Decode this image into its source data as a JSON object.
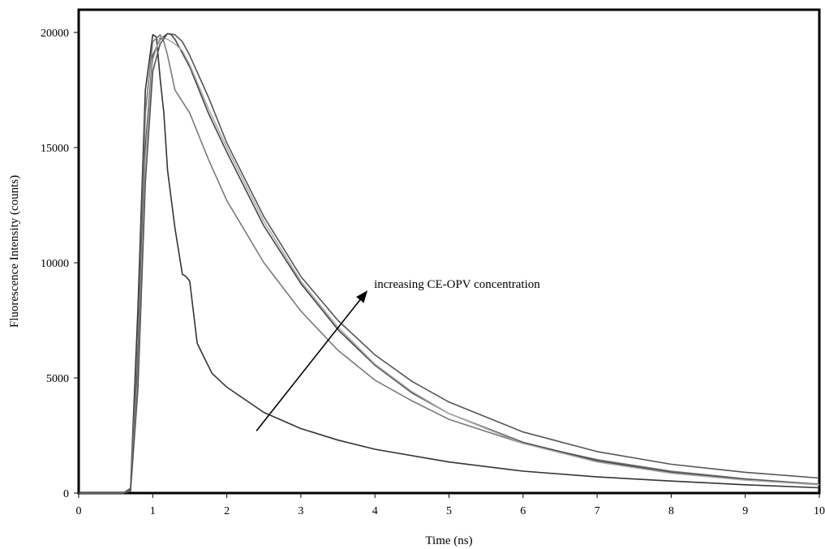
{
  "chart_data": {
    "type": "line",
    "title": "",
    "xlabel": "Time (ns)",
    "ylabel": "Fluorescence Intensity (counts)",
    "xlim": [
      0,
      10
    ],
    "ylim": [
      0,
      21000
    ],
    "x_ticks": [
      "0",
      "1",
      "2",
      "3",
      "4",
      "5",
      "6",
      "7",
      "8",
      "9",
      "10"
    ],
    "y_ticks": [
      "0",
      "5000",
      "10000",
      "15000",
      "20000"
    ],
    "grid": false,
    "legend": "none",
    "annotation": {
      "text": "increasing CE-OPV concentration",
      "arrow_from": [
        2.4,
        2700
      ],
      "arrow_to": [
        3.9,
        8800
      ]
    },
    "series": [
      {
        "color": "#333333",
        "x": [
          0,
          0.6,
          0.7,
          0.8,
          0.9,
          1.0,
          1.05,
          1.1,
          1.15,
          1.2,
          1.3,
          1.4,
          1.45,
          1.5,
          1.6,
          1.8,
          2.0,
          2.5,
          3.0,
          3.5,
          4.0,
          5.0,
          6.0,
          7.0,
          8.0,
          9.0,
          10.0
        ],
        "y": [
          0,
          0,
          200,
          8000,
          17500,
          19900,
          19800,
          18000,
          16500,
          14000,
          11500,
          9500,
          9400,
          9200,
          6500,
          5200,
          4600,
          3500,
          2800,
          2300,
          1900,
          1350,
          950,
          700,
          520,
          360,
          230
        ]
      },
      {
        "color": "#7a7a7a",
        "x": [
          0,
          0.6,
          0.7,
          0.8,
          0.9,
          1.0,
          1.1,
          1.15,
          1.2,
          1.3,
          1.5,
          1.75,
          2.0,
          2.5,
          3.0,
          3.5,
          4.0,
          4.5,
          5.0,
          6.0,
          7.0,
          8.0,
          9.0,
          10.0
        ],
        "y": [
          0,
          0,
          150,
          6500,
          16500,
          19600,
          19900,
          19600,
          19000,
          17500,
          16500,
          14500,
          12700,
          10000,
          7900,
          6200,
          4900,
          4000,
          3200,
          2150,
          1450,
          950,
          620,
          380
        ]
      },
      {
        "color": "#444444",
        "x": [
          0,
          0.6,
          0.7,
          0.8,
          0.9,
          1.0,
          1.1,
          1.2,
          1.25,
          1.3,
          1.5,
          1.75,
          2.0,
          2.5,
          3.0,
          3.5,
          4.0,
          4.5,
          5.0,
          6.0,
          7.0,
          8.0,
          9.0,
          10.0
        ],
        "y": [
          0,
          0,
          120,
          5500,
          15000,
          19000,
          19700,
          19950,
          19900,
          19700,
          18500,
          16500,
          14800,
          11600,
          9100,
          7100,
          5550,
          4350,
          3450,
          2200,
          1400,
          900,
          590,
          380
        ]
      },
      {
        "color": "#aaaaaa",
        "x": [
          0,
          0.6,
          0.7,
          0.8,
          0.9,
          1.0,
          1.1,
          1.2,
          1.3,
          1.4,
          1.5,
          1.75,
          2.0,
          2.5,
          3.0,
          3.5,
          4.0,
          4.5,
          5.0,
          6.0,
          7.0,
          8.0,
          9.0,
          10.0
        ],
        "y": [
          0,
          0,
          100,
          5000,
          14500,
          18800,
          19800,
          19700,
          19500,
          19200,
          18600,
          16700,
          15000,
          11800,
          9200,
          7200,
          5600,
          4400,
          3450,
          2150,
          1350,
          860,
          560,
          360
        ]
      },
      {
        "color": "#555555",
        "x": [
          0,
          0.6,
          0.7,
          0.8,
          0.9,
          1.0,
          1.1,
          1.2,
          1.3,
          1.4,
          1.5,
          1.75,
          2.0,
          2.5,
          3.0,
          3.5,
          4.0,
          4.5,
          5.0,
          6.0,
          7.0,
          8.0,
          9.0,
          10.0
        ],
        "y": [
          0,
          0,
          80,
          4500,
          13500,
          18300,
          19500,
          19950,
          19900,
          19600,
          19000,
          17200,
          15200,
          12000,
          9400,
          7500,
          6000,
          4850,
          3950,
          2650,
          1800,
          1250,
          900,
          650
        ]
      }
    ]
  }
}
